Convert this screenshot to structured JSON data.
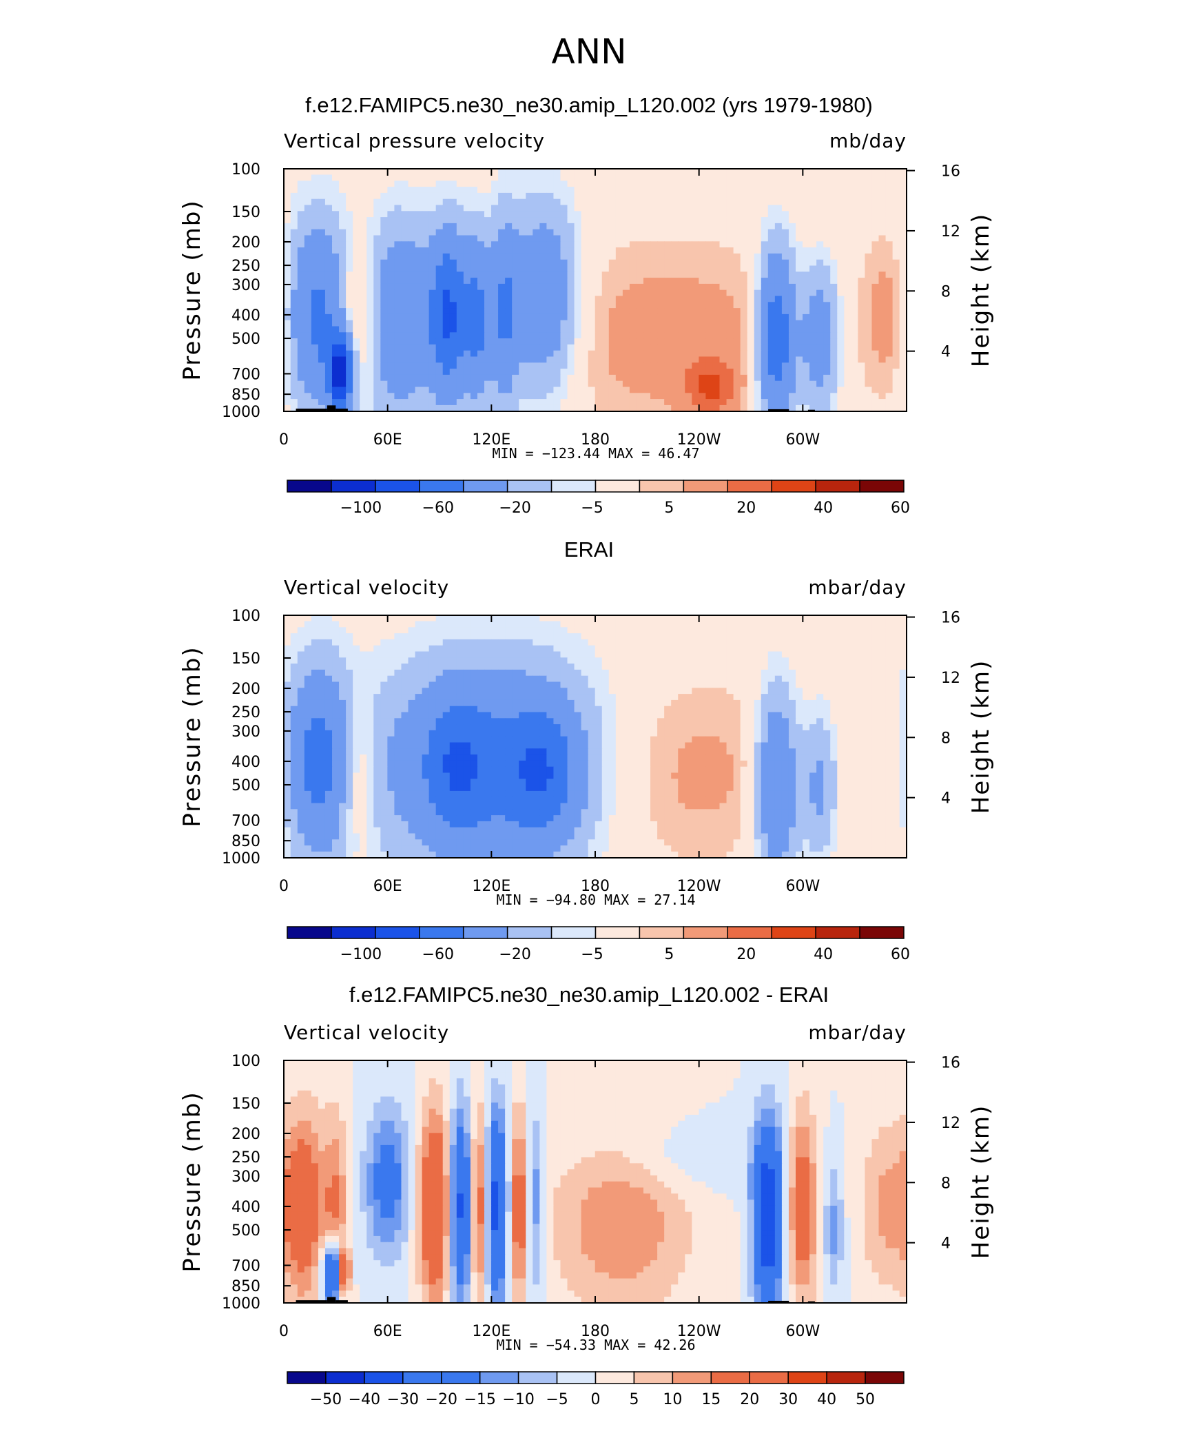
{
  "figure": {
    "title": "ANN"
  },
  "colors": {
    "bar11": [
      "#08088c",
      "#0c2ed0",
      "#1b53e8",
      "#3a78ee",
      "#6f9af0",
      "#a9c2f4",
      "#dbe8fb",
      "#fde9de",
      "#f8c5ad",
      "#f29a78",
      "#ea6c45",
      "#de4416",
      "#b8250d",
      "#7a0606"
    ],
    "bar13": [
      "#08088c",
      "#0c2ed0",
      "#1b53e8",
      "#3a78ee",
      "#6f9af0",
      "#a9c2f4",
      "#dbe8fb",
      "#fde9de",
      "#f8c5ad",
      "#f29a78",
      "#ea6c45",
      "#de4416",
      "#b8250d",
      "#7a0606"
    ],
    "terrain": "#000000"
  },
  "chart_data": [
    {
      "type": "heatmap",
      "title": "f.e12.FAMIPC5.ne30_ne30.amip_L120.002 (yrs 1979-1980)",
      "left_label": "Vertical pressure velocity",
      "units": "mb/day",
      "ylabel": "Pressure (mb)",
      "y2label": "Height (km)",
      "x_ticks": [
        "0",
        "60E",
        "120E",
        "180",
        "120W",
        "60W"
      ],
      "xlim": [
        0,
        360
      ],
      "y_ticks": [
        "100",
        "150",
        "200",
        "250",
        "300",
        "400",
        "500",
        "700",
        "850",
        "1000"
      ],
      "ylim": [
        1000,
        100
      ],
      "y_scale": "log",
      "y2_ticks": [
        "4",
        "8",
        "12",
        "16"
      ],
      "min_max": "MIN = −123.44   MAX =   46.47",
      "colorbar_labels": [
        "−100",
        "−60",
        "−20",
        "−5",
        "5",
        "20",
        "40",
        "60"
      ],
      "colorbar_bins": 14,
      "palette": "bar11",
      "terrain": true,
      "fields": [
        {
          "lon": 20,
          "p": 400,
          "v": -45,
          "w": 16,
          "h": 0.9
        },
        {
          "lon": 33,
          "p": 700,
          "v": -80,
          "w": 5,
          "h": 0.35
        },
        {
          "lon": 42,
          "p": 400,
          "v": 28,
          "w": 8,
          "h": 0.7
        },
        {
          "lon": 68,
          "p": 420,
          "v": -40,
          "w": 14,
          "h": 0.9
        },
        {
          "lon": 96,
          "p": 400,
          "v": -60,
          "w": 8,
          "h": 0.8
        },
        {
          "lon": 112,
          "p": 420,
          "v": -40,
          "w": 5,
          "h": 0.8
        },
        {
          "lon": 127,
          "p": 400,
          "v": -35,
          "w": 6,
          "h": 0.9
        },
        {
          "lon": 150,
          "p": 350,
          "v": -40,
          "w": 15,
          "h": 0.9
        },
        {
          "lon": 225,
          "p": 500,
          "v": 15,
          "w": 55,
          "h": 0.9
        },
        {
          "lon": 247,
          "p": 800,
          "v": 25,
          "w": 10,
          "h": 0.25
        },
        {
          "lon": 285,
          "p": 500,
          "v": -60,
          "w": 8,
          "h": 0.85
        },
        {
          "lon": 310,
          "p": 500,
          "v": -35,
          "w": 8,
          "h": 0.7
        },
        {
          "lon": 352,
          "p": 400,
          "v": 20,
          "w": 11,
          "h": 0.8
        }
      ]
    },
    {
      "type": "heatmap",
      "title": "ERAI",
      "left_label": "Vertical velocity",
      "units": "mbar/day",
      "ylabel": "Pressure (mb)",
      "y2label": "Height (km)",
      "x_ticks": [
        "0",
        "60E",
        "120E",
        "180",
        "120W",
        "60W"
      ],
      "xlim": [
        0,
        360
      ],
      "y_ticks": [
        "100",
        "150",
        "200",
        "250",
        "300",
        "400",
        "500",
        "700",
        "850",
        "1000"
      ],
      "ylim": [
        1000,
        100
      ],
      "y_scale": "log",
      "y2_ticks": [
        "4",
        "8",
        "12",
        "16"
      ],
      "min_max": "MIN = −94.80   MAX =   27.14",
      "colorbar_labels": [
        "−100",
        "−60",
        "−20",
        "−5",
        "5",
        "20",
        "40",
        "60"
      ],
      "colorbar_bins": 14,
      "palette": "bar11",
      "terrain": false,
      "fields": [
        {
          "lon": 20,
          "p": 400,
          "v": -45,
          "w": 14,
          "h": 0.9
        },
        {
          "lon": 42,
          "p": 450,
          "v": 20,
          "w": 8,
          "h": 0.7
        },
        {
          "lon": 120,
          "p": 420,
          "v": -45,
          "w": 48,
          "h": 1.0
        },
        {
          "lon": 100,
          "p": 420,
          "v": -25,
          "w": 12,
          "h": 0.6
        },
        {
          "lon": 150,
          "p": 450,
          "v": -30,
          "w": 14,
          "h": 0.6
        },
        {
          "lon": 230,
          "p": 450,
          "v": 14,
          "w": 45,
          "h": 0.9
        },
        {
          "lon": 285,
          "p": 500,
          "v": -45,
          "w": 9,
          "h": 0.9
        },
        {
          "lon": 310,
          "p": 500,
          "v": -25,
          "w": 7,
          "h": 0.7
        },
        {
          "lon": 352,
          "p": 450,
          "v": 8,
          "w": 12,
          "h": 0.7
        }
      ]
    },
    {
      "type": "heatmap",
      "title": "f.e12.FAMIPC5.ne30_ne30.amip_L120.002 - ERAI",
      "left_label": "Vertical velocity",
      "units": "mbar/day",
      "ylabel": "Pressure (mb)",
      "y2label": "Height (km)",
      "x_ticks": [
        "0",
        "60E",
        "120E",
        "180",
        "120W",
        "60W"
      ],
      "xlim": [
        0,
        360
      ],
      "y_ticks": [
        "100",
        "150",
        "200",
        "250",
        "300",
        "400",
        "500",
        "700",
        "850",
        "1000"
      ],
      "ylim": [
        1000,
        100
      ],
      "y_scale": "log",
      "y2_ticks": [
        "4",
        "8",
        "12",
        "16"
      ],
      "min_max": "MIN = −54.33   MAX =   42.26",
      "colorbar_labels": [
        "−50",
        "−40",
        "−30",
        "−20",
        "−15",
        "−10",
        "−5",
        "0",
        "5",
        "10",
        "15",
        "20",
        "30",
        "40",
        "50"
      ],
      "colorbar_bins": 16,
      "palette": "bar13",
      "terrain": true,
      "fields": [
        {
          "lon": 12,
          "p": 400,
          "v": 22,
          "w": 8,
          "h": 0.9
        },
        {
          "lon": 30,
          "p": 400,
          "v": 15,
          "w": 5,
          "h": 0.9
        },
        {
          "lon": 28,
          "p": 750,
          "v": -40,
          "w": 4,
          "h": 0.3
        },
        {
          "lon": 35,
          "p": 750,
          "v": 35,
          "w": 2,
          "h": 0.2
        },
        {
          "lon": 60,
          "p": 320,
          "v": -20,
          "w": 9,
          "h": 0.7
        },
        {
          "lon": 88,
          "p": 400,
          "v": 30,
          "w": 7,
          "h": 0.9
        },
        {
          "lon": 102,
          "p": 400,
          "v": -35,
          "w": 5,
          "h": 0.9
        },
        {
          "lon": 113,
          "p": 400,
          "v": 25,
          "w": 4,
          "h": 0.9
        },
        {
          "lon": 123,
          "p": 400,
          "v": -35,
          "w": 5,
          "h": 0.9
        },
        {
          "lon": 136,
          "p": 400,
          "v": 22,
          "w": 4,
          "h": 0.9
        },
        {
          "lon": 145,
          "p": 400,
          "v": -15,
          "w": 4,
          "h": 0.9
        },
        {
          "lon": 195,
          "p": 450,
          "v": 15,
          "w": 28,
          "h": 0.9
        },
        {
          "lon": 225,
          "p": 250,
          "v": -6,
          "w": 40,
          "h": 0.35
        },
        {
          "lon": 280,
          "p": 450,
          "v": -40,
          "w": 6,
          "h": 0.9
        },
        {
          "lon": 300,
          "p": 400,
          "v": 22,
          "w": 6,
          "h": 0.9
        },
        {
          "lon": 318,
          "p": 500,
          "v": -12,
          "w": 4,
          "h": 0.6
        },
        {
          "lon": 350,
          "p": 400,
          "v": 12,
          "w": 12,
          "h": 0.8
        }
      ]
    }
  ]
}
